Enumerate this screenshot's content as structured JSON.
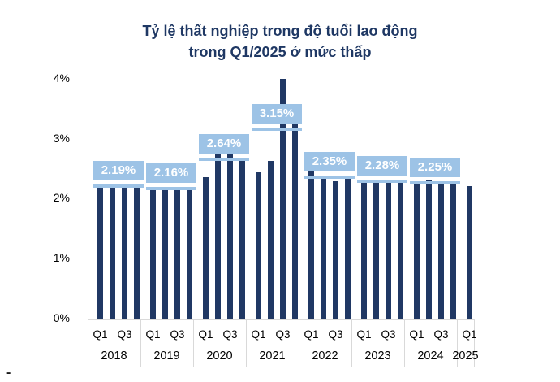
{
  "title": {
    "line1": "Tỷ lệ thất nghiệp trong độ tuổi lao động",
    "line2": "trong Q1/2025 ở mức thấp"
  },
  "footer": {
    "stray_mark": "-"
  },
  "colors": {
    "bar": "#203864",
    "accent_light_blue": "#9dc3e6",
    "title_navy": "#1f3864",
    "axis_text": "#000000",
    "grid_gray": "#d9d9d9",
    "label_text": "#ffffff"
  },
  "chart_data": {
    "type": "bar",
    "title": "Tỷ lệ thất nghiệp trong độ tuổi lao động trong Q1/2025 ở mức thấp",
    "xlabel": "",
    "ylabel": "",
    "ylim": [
      0,
      4
    ],
    "y_ticks": [
      "0%",
      "1%",
      "2%",
      "3%",
      "4%"
    ],
    "grid": false,
    "legend": false,
    "quarter_ticks_shown": [
      "Q1",
      "Q3"
    ],
    "unit": "%",
    "groups": [
      {
        "year": "2018",
        "avg_label": "2.19%",
        "avg": 2.19,
        "quarters": [
          {
            "q": "Q1",
            "value": 2.2
          },
          {
            "q": "Q2",
            "value": 2.19
          },
          {
            "q": "Q3",
            "value": 2.2
          },
          {
            "q": "Q4",
            "value": 2.17
          }
        ]
      },
      {
        "year": "2019",
        "avg_label": "2.16%",
        "avg": 2.16,
        "quarters": [
          {
            "q": "Q1",
            "value": 2.17
          },
          {
            "q": "Q2",
            "value": 2.16
          },
          {
            "q": "Q3",
            "value": 2.17
          },
          {
            "q": "Q4",
            "value": 2.15
          }
        ]
      },
      {
        "year": "2020",
        "avg_label": "2.64%",
        "avg": 2.64,
        "quarters": [
          {
            "q": "Q1",
            "value": 2.34
          },
          {
            "q": "Q2",
            "value": 2.73
          },
          {
            "q": "Q3",
            "value": 2.73
          },
          {
            "q": "Q4",
            "value": 2.66
          }
        ]
      },
      {
        "year": "2021",
        "avg_label": "3.15%",
        "avg": 3.15,
        "quarters": [
          {
            "q": "Q1",
            "value": 2.42
          },
          {
            "q": "Q2",
            "value": 2.62
          },
          {
            "q": "Q3",
            "value": 3.98
          },
          {
            "q": "Q4",
            "value": 3.24
          }
        ]
      },
      {
        "year": "2022",
        "avg_label": "2.35%",
        "avg": 2.35,
        "quarters": [
          {
            "q": "Q1",
            "value": 2.46
          },
          {
            "q": "Q2",
            "value": 2.32
          },
          {
            "q": "Q3",
            "value": 2.28
          },
          {
            "q": "Q4",
            "value": 2.32
          }
        ]
      },
      {
        "year": "2023",
        "avg_label": "2.28%",
        "avg": 2.28,
        "quarters": [
          {
            "q": "Q1",
            "value": 2.25
          },
          {
            "q": "Q2",
            "value": 2.3
          },
          {
            "q": "Q3",
            "value": 2.3
          },
          {
            "q": "Q4",
            "value": 2.26
          }
        ]
      },
      {
        "year": "2024",
        "avg_label": "2.25%",
        "avg": 2.25,
        "quarters": [
          {
            "q": "Q1",
            "value": 2.24
          },
          {
            "q": "Q2",
            "value": 2.29
          },
          {
            "q": "Q3",
            "value": 2.25
          },
          {
            "q": "Q4",
            "value": 2.22
          }
        ]
      },
      {
        "year": "2025",
        "avg_label": null,
        "avg": null,
        "quarters": [
          {
            "q": "Q1",
            "value": 2.2
          }
        ]
      }
    ]
  }
}
